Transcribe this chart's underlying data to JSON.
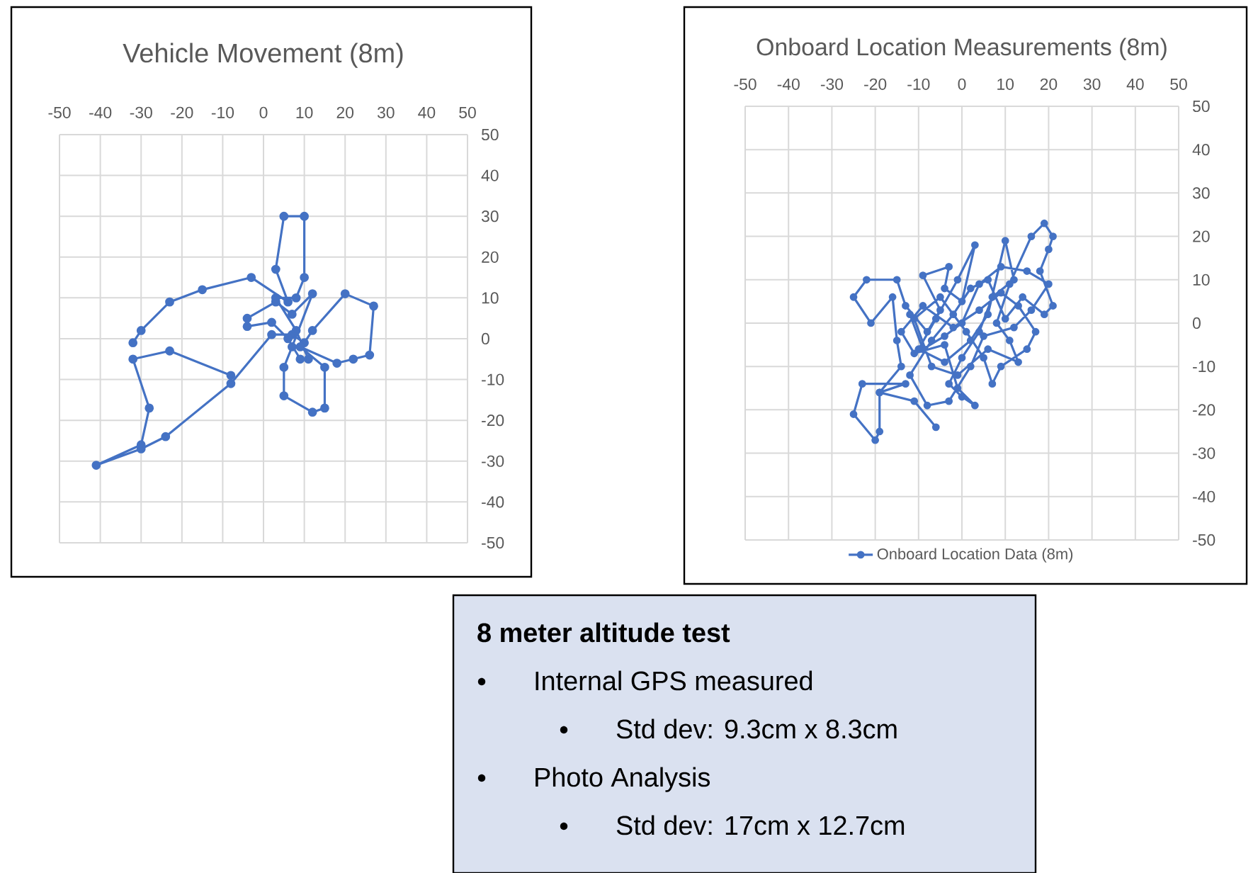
{
  "chart_data": [
    {
      "type": "line",
      "title": "Vehicle Movement (8m)",
      "xlim": [
        -50,
        50
      ],
      "ylim": [
        -50,
        50
      ],
      "xticks": [
        -50,
        -40,
        -30,
        -20,
        -10,
        0,
        10,
        20,
        30,
        40,
        50
      ],
      "yticks": [
        -50,
        -40,
        -30,
        -20,
        -10,
        0,
        10,
        20,
        30,
        40,
        50
      ],
      "grid": true,
      "legend": false,
      "marker": "circle",
      "line_style": "solid",
      "series": [
        {
          "color": "#4472c4",
          "x": [
            -8,
            -23,
            -32,
            -28,
            -30,
            -41,
            -30,
            -24,
            -8,
            2,
            7,
            10,
            12,
            20,
            27,
            26,
            22,
            18,
            9,
            15,
            15,
            12,
            5,
            5,
            7,
            12,
            7,
            3,
            -4,
            -4,
            2,
            6,
            9,
            11,
            8,
            3,
            8,
            10,
            10,
            5,
            3,
            6,
            -3,
            -15,
            -23,
            -30,
            -32
          ],
          "values": [
            -9,
            -3,
            -5,
            -17,
            -26,
            -31,
            -27,
            -24,
            -11,
            1,
            1,
            -1,
            2,
            11,
            8,
            -4,
            -5,
            -6,
            -2,
            -7,
            -17,
            -18,
            -14,
            -7,
            -2,
            11,
            6,
            9,
            5,
            3,
            4,
            0,
            -5,
            -5,
            2,
            10,
            10,
            15,
            30,
            30,
            17,
            9,
            15,
            12,
            9,
            2,
            -1
          ]
        }
      ]
    },
    {
      "type": "line",
      "title": "Onboard Location Measurements (8m)",
      "xlim": [
        -50,
        50
      ],
      "ylim": [
        -50,
        50
      ],
      "xticks": [
        -50,
        -40,
        -30,
        -20,
        -10,
        0,
        10,
        20,
        30,
        40,
        50
      ],
      "yticks": [
        -50,
        -40,
        -30,
        -20,
        -10,
        0,
        10,
        20,
        30,
        40,
        50
      ],
      "grid": true,
      "legend": "bottom",
      "marker": "circle",
      "line_style": "solid",
      "series": [
        {
          "name": "Onboard Location Data (8m)",
          "color": "#4472c4",
          "x": [
            -6,
            -11,
            -19,
            -13,
            -23,
            -25,
            -20,
            -19,
            -19,
            -14,
            -15,
            -16,
            -21,
            -25,
            -22,
            -15,
            -13,
            -8,
            -5,
            -9,
            -3,
            -4,
            0,
            3,
            -1,
            -6,
            -10,
            -4,
            2,
            6,
            10,
            12,
            7,
            4,
            0,
            -3,
            0,
            3,
            -1,
            -4,
            -11,
            -14,
            -9,
            -2,
            4,
            9,
            13,
            17,
            15,
            9,
            7,
            5,
            1,
            -5,
            -11,
            -7,
            -1,
            6,
            13,
            11,
            8,
            11,
            16,
            19,
            21,
            20,
            18,
            21,
            19,
            14,
            10,
            6,
            2,
            -2,
            -7,
            -12,
            -8,
            -3,
            2,
            5,
            12,
            16,
            20,
            15,
            9,
            4,
            0,
            -4,
            -9,
            -12
          ],
          "values": [
            -24,
            -18,
            -16,
            -14,
            -14,
            -21,
            -27,
            -25,
            -16,
            -10,
            -4,
            6,
            0,
            6,
            10,
            10,
            4,
            -2,
            3,
            11,
            13,
            8,
            5,
            18,
            10,
            1,
            -6,
            -9,
            -4,
            2,
            19,
            10,
            6,
            -2,
            -8,
            -14,
            -17,
            -19,
            -15,
            -5,
            -7,
            -2,
            4,
            -1,
            3,
            7,
            4,
            -2,
            -6,
            -10,
            -14,
            -8,
            -2,
            6,
            1,
            -10,
            -12,
            -6,
            -9,
            -4,
            0,
            9,
            20,
            23,
            20,
            17,
            12,
            4,
            2,
            6,
            1,
            10,
            8,
            2,
            -4,
            -12,
            -19,
            -18,
            -10,
            -3,
            -1,
            3,
            9,
            12,
            13,
            9,
            0,
            -3,
            -6,
            2
          ]
        }
      ]
    },
    {
      "type": "other",
      "title": "8 meter altitude test",
      "annotations": [
        "Internal GPS measured",
        "Std dev: 9.3cm x 8.3cm",
        "Photo Analysis",
        "Std dev: 17cm x 12.7cm"
      ]
    }
  ]
}
